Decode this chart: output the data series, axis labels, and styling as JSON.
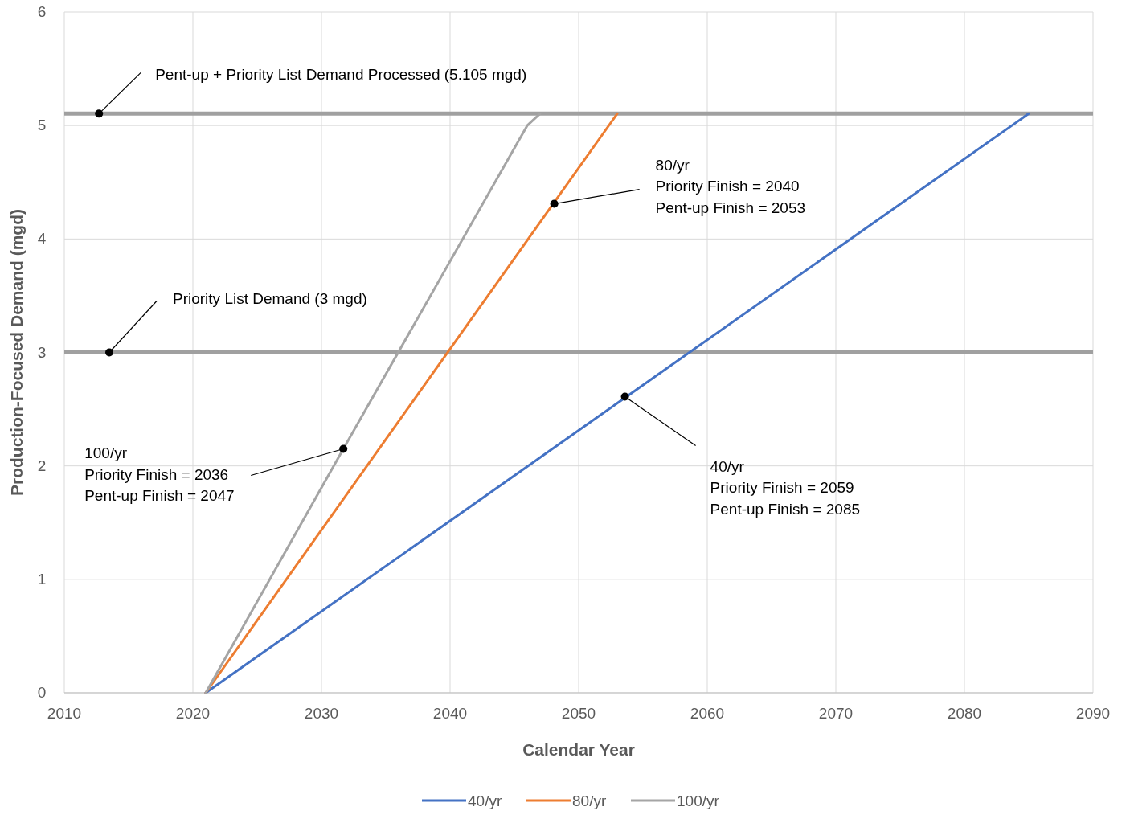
{
  "chart_data": {
    "type": "line",
    "xlabel": "Calendar Year",
    "ylabel": "Production-Focused Demand (mgd)",
    "xlim": [
      2010,
      2090
    ],
    "xticks": [
      2010,
      2020,
      2030,
      2040,
      2050,
      2060,
      2070,
      2080,
      2090
    ],
    "ylim": [
      0,
      6
    ],
    "yticks": [
      0,
      1,
      2,
      3,
      4,
      5,
      6
    ],
    "grid": true,
    "legend": "bottom",
    "marker": "none",
    "line_style": "solid",
    "series": [
      {
        "name": "40/yr",
        "color": "#4472c4",
        "x": [
          2021,
          2085
        ],
        "values": [
          0,
          5.105
        ]
      },
      {
        "name": "80/yr",
        "color": "#ed7d31",
        "x": [
          2021,
          2053
        ],
        "values": [
          0,
          5.105
        ]
      },
      {
        "name": "100/yr",
        "color": "#a5a5a5",
        "x": [
          2021,
          2031.7,
          2046,
          2047
        ],
        "values": [
          0,
          2.15,
          5.0,
          5.105
        ]
      }
    ],
    "ref_lines": [
      {
        "axis": "y",
        "value": 5.105,
        "color": "#a0a0a0"
      },
      {
        "axis": "y",
        "value": 3,
        "color": "#a0a0a0"
      }
    ],
    "annotations": [
      {
        "text": "Pent-up +  Priority List Demand Processed (5.105 mgd)",
        "x": 2012.7,
        "y": 5.105
      },
      {
        "text": "Priority List Demand (3 mgd)",
        "x": 2013.5,
        "y": 3
      },
      {
        "text": "100/yr\nPriority Finish = 2036\nPent-up Finish = 2047",
        "x": 2031.7,
        "y": 2.15
      },
      {
        "text": "80/yr\nPriority Finish = 2040\nPent-up Finish = 2053",
        "x": 2048.1,
        "y": 4.31
      },
      {
        "text": "40/yr\nPriority Finish = 2059\nPent-up Finish = 2085",
        "x": 2053.6,
        "y": 2.61
      }
    ]
  }
}
